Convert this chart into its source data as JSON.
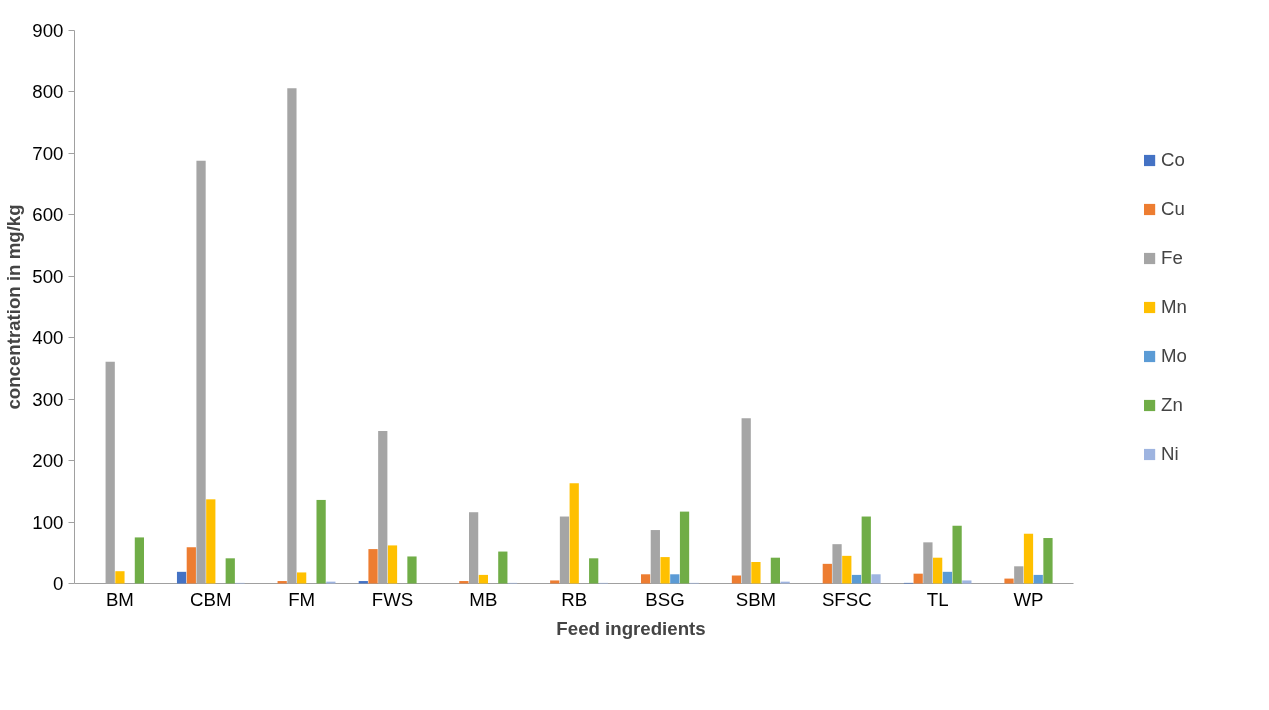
{
  "chart_data": {
    "type": "bar",
    "xlabel": "Feed ingredients",
    "ylabel": "concentration in mg/kg",
    "categories": [
      "BM",
      "CBM",
      "FM",
      "FWS",
      "MB",
      "RB",
      "BSG",
      "SBM",
      "SFSC",
      "TL",
      "WP"
    ],
    "series": [
      {
        "name": "Co",
        "color": "#4472c4",
        "values": [
          null,
          19,
          null,
          4,
          null,
          null,
          null,
          null,
          null,
          1,
          null
        ]
      },
      {
        "name": "Cu",
        "color": "#ed7d31",
        "values": [
          null,
          59,
          4,
          56,
          4,
          5,
          15,
          13,
          32,
          16,
          8
        ]
      },
      {
        "name": "Fe",
        "color": "#a5a5a5",
        "values": [
          361,
          688,
          806,
          248,
          116,
          109,
          87,
          269,
          64,
          67,
          28
        ]
      },
      {
        "name": "Mn",
        "color": "#ffc000",
        "values": [
          20,
          137,
          18,
          62,
          14,
          163,
          43,
          35,
          45,
          42,
          81
        ]
      },
      {
        "name": "Mo",
        "color": "#5b9bd5",
        "values": [
          null,
          null,
          null,
          null,
          null,
          null,
          15,
          null,
          14,
          19,
          14
        ]
      },
      {
        "name": "Zn",
        "color": "#70ad47",
        "values": [
          75,
          41,
          136,
          44,
          52,
          41,
          117,
          42,
          109,
          94,
          74
        ]
      },
      {
        "name": "Ni",
        "color": "#9eb4e0",
        "values": [
          null,
          1,
          3,
          null,
          1,
          1,
          1,
          3,
          15,
          5,
          null
        ]
      }
    ],
    "ylim": [
      0,
      900
    ],
    "yticks": [
      0,
      100,
      200,
      300,
      400,
      500,
      600,
      700,
      800,
      900
    ],
    "grid": false,
    "legend": "right"
  }
}
